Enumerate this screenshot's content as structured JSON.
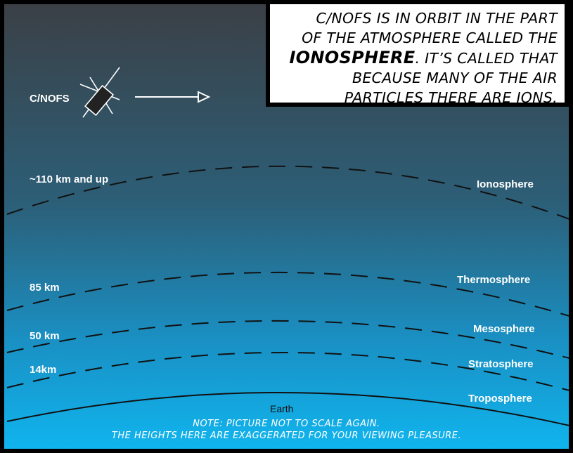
{
  "caption": {
    "lines": [
      {
        "text": "C/NOFS IS IN ORBIT IN THE PART"
      },
      {
        "text": "OF THE ATMOSPHERE CALLED THE"
      },
      {
        "emphasis": "IONOSPHERE",
        "text": ". IT’S CALLED THAT"
      },
      {
        "text": "BECAUSE MANY OF THE AIR"
      },
      {
        "text": "PARTICLES THERE ARE IONS."
      }
    ]
  },
  "satellite": {
    "label": "C/NOFS"
  },
  "heights": [
    "~110 km and up",
    "85 km",
    "50 km",
    "14km"
  ],
  "layers": [
    "Ionosphere",
    "Thermosphere",
    "Mesosphere",
    "Stratosphere",
    "Troposphere"
  ],
  "earth": "Earth",
  "note": [
    "NOTE: PICTURE NOT TO SCALE AGAIN.",
    "THE HEIGHTS HERE ARE EXAGGERATED FOR YOUR VIEWING PLEASURE."
  ]
}
